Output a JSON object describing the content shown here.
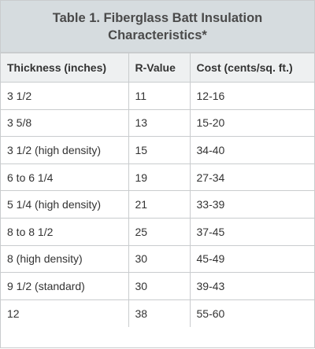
{
  "table": {
    "title_line1": "Table 1. Fiberglass Batt Insulation",
    "title_line2": "Characteristics*",
    "headers": [
      "Thickness (inches)",
      "R-Value",
      "Cost (cents/sq. ft.)"
    ],
    "rows": [
      [
        "3 1/2",
        "11",
        "12-16"
      ],
      [
        "3 5/8",
        "13",
        "15-20"
      ],
      [
        "3 1/2 (high density)",
        "15",
        "34-40"
      ],
      [
        "6 to 6 1/4",
        "19",
        "27-34"
      ],
      [
        "5 1/4 (high density)",
        "21",
        "33-39"
      ],
      [
        "8 to 8 1/2",
        "25",
        "37-45"
      ],
      [
        "8 (high density)",
        "30",
        "45-49"
      ],
      [
        "9 1/2 (standard)",
        "30",
        "39-43"
      ],
      [
        "12",
        "38",
        "55-60"
      ]
    ]
  },
  "colors": {
    "title_bg": "#d6dcdf",
    "header_bg": "#eef0f1",
    "border": "#c9ccce",
    "text": "#333333"
  }
}
